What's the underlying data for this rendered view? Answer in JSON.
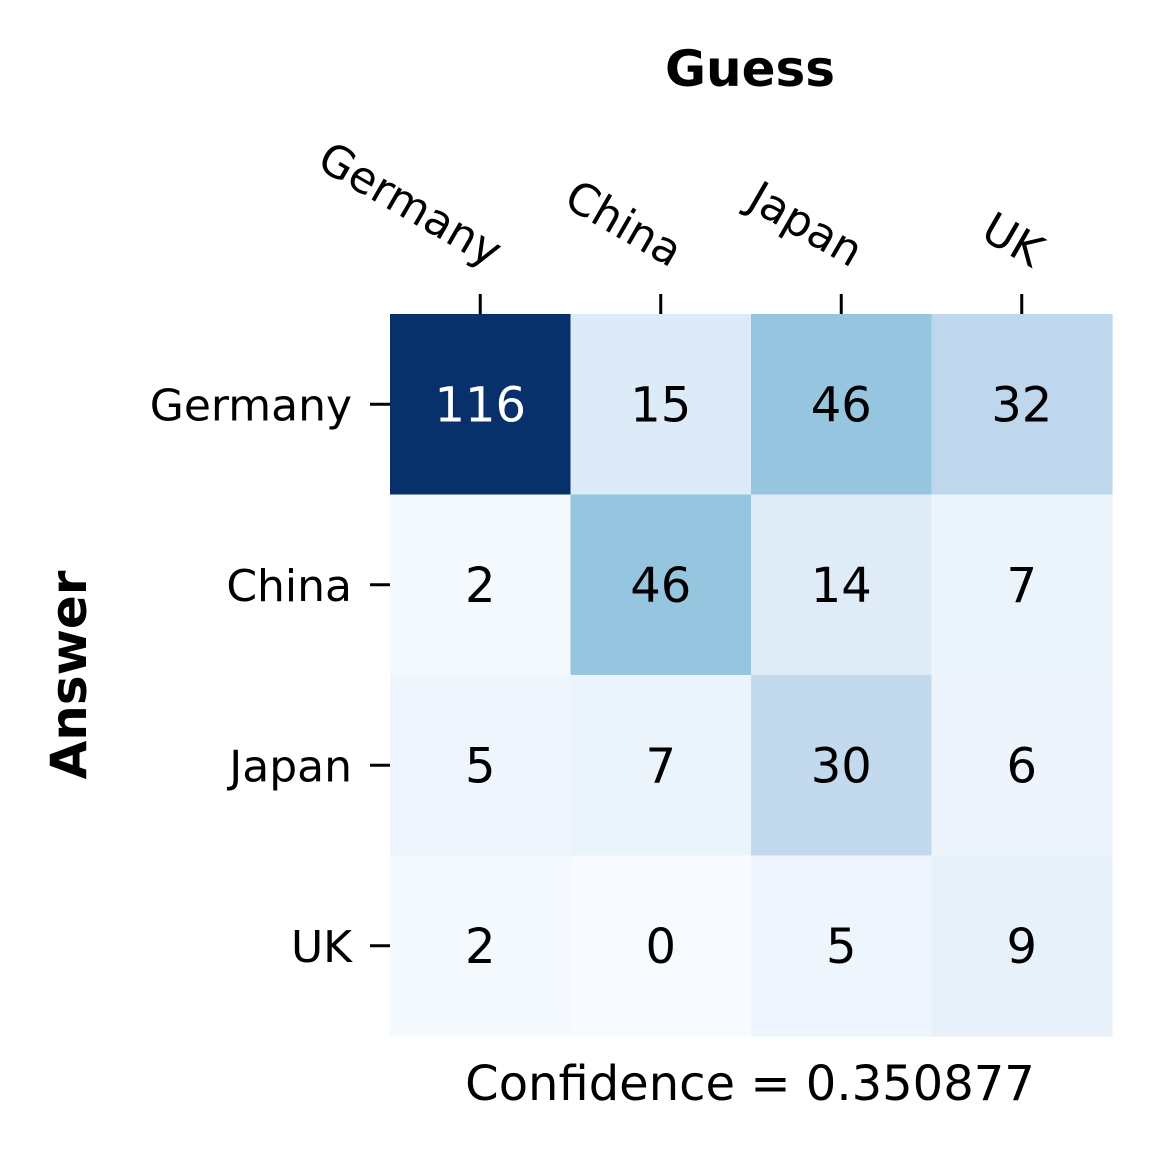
{
  "chart_data": {
    "type": "heatmap",
    "title": "",
    "xlabel": "Guess",
    "ylabel": "Answer",
    "x_categories": [
      "Germany",
      "China",
      "Japan",
      "UK"
    ],
    "y_categories": [
      "Germany",
      "China",
      "Japan",
      "UK"
    ],
    "values": [
      [
        116,
        15,
        46,
        32
      ],
      [
        2,
        46,
        14,
        7
      ],
      [
        5,
        7,
        30,
        6
      ],
      [
        2,
        0,
        5,
        9
      ]
    ],
    "colormap": "Blues",
    "vmin": 0,
    "vmax": 116,
    "annotation": "Confidence = 0.350877",
    "x_ticks_position": "top",
    "colorbar": false
  }
}
